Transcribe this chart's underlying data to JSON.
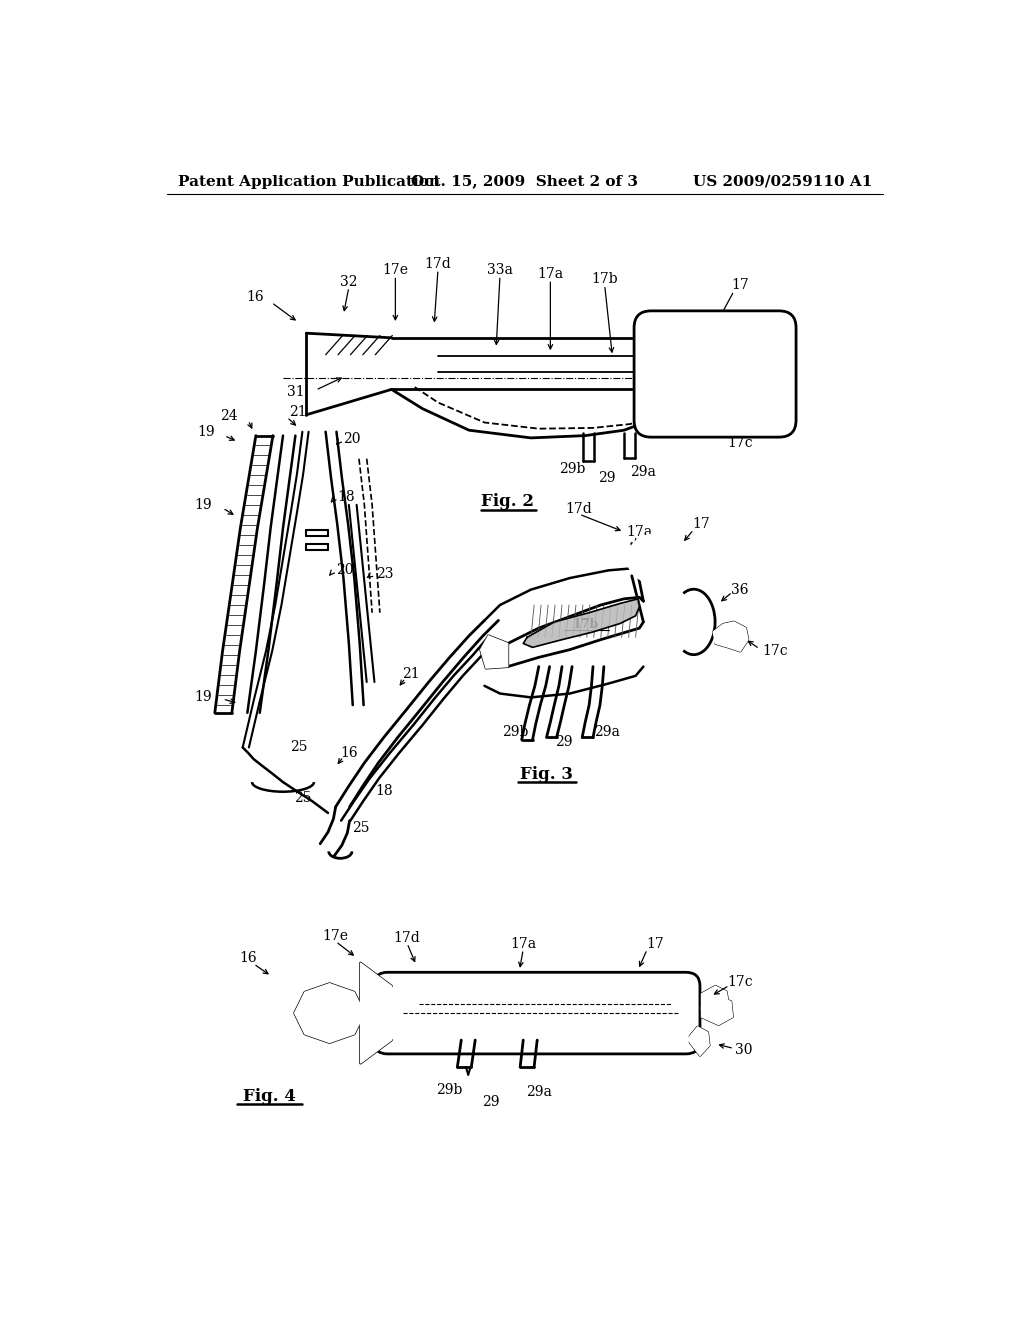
{
  "background_color": "#ffffff",
  "header_left": "Patent Application Publication",
  "header_center": "Oct. 15, 2009  Sheet 2 of 3",
  "header_right": "US 2009/0259110 A1",
  "header_fontsize": 11,
  "line_color": "#000000",
  "label_fontsize": 10
}
